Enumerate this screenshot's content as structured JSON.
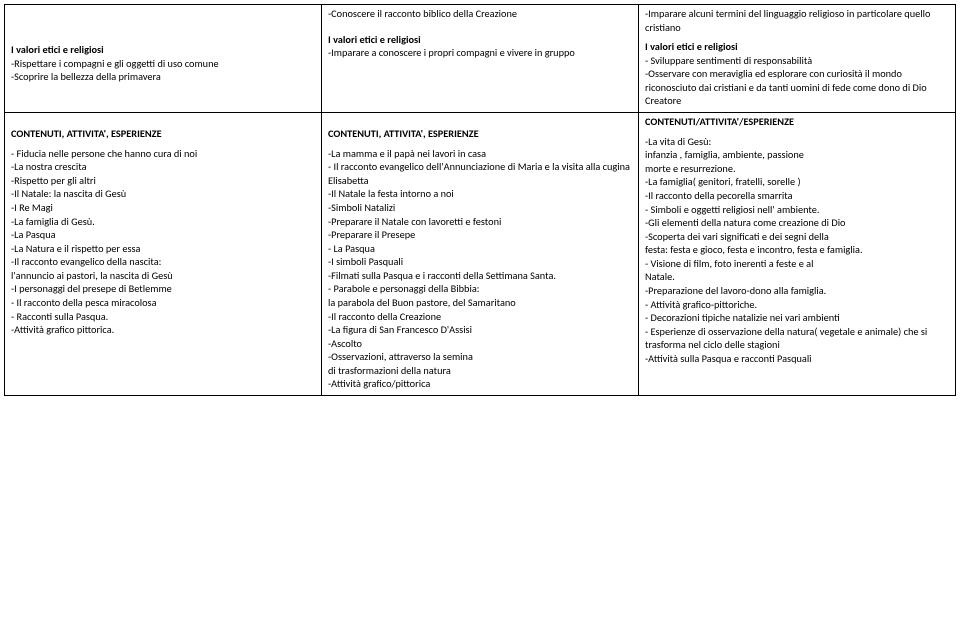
{
  "row1": {
    "col1": {
      "heading": "I valori etici e religiosi",
      "items": [
        "-Rispettare i compagni e gli oggetti  di uso comune",
        "-Scoprire  la bellezza della primavera"
      ]
    },
    "col2": {
      "top": "-Conoscere il racconto biblico della Creazione",
      "heading": "I valori etici e religiosi",
      "items": [
        "-Imparare a conoscere i propri compagni e vivere in gruppo"
      ]
    },
    "col3": {
      "top": "-Imparare alcuni termini del linguaggio religioso in particolare quello cristiano",
      "heading": "I valori etici e religiosi",
      "items": [
        "-  Sviluppare sentimenti di responsabilità",
        "-Osservare con meraviglia ed esplorare con curiosità il mondo riconosciuto dai cristiani e da tanti uomini di fede come dono di Dio Creatore"
      ]
    }
  },
  "row2": {
    "col1": {
      "heading": "CONTENUTI, ATTIVITA', ESPERIENZE",
      "items": [
        "- Fiducia nelle persone che hanno cura di noi",
        "-La nostra crescita",
        "-Rispetto per gli altri",
        "-Il Natale: la nascita di Gesù",
        "-I Re Magi",
        "-La famiglia di Gesù.",
        "-La Pasqua",
        " -La Natura e il rispetto per essa",
        "-Il racconto evangelico della nascita:",
        "   l'annuncio ai pastori, la nascita di Gesù",
        "-I personaggi del presepe di Betlemme",
        "- Il racconto della pesca miracolosa",
        "- Racconti sulla Pasqua.",
        "-Attività grafico pittorica."
      ]
    },
    "col2": {
      "heading": " CONTENUTI, ATTIVITA', ESPERIENZE",
      "items": [
        "-La mamma e il papà nei lavori in casa",
        "- Il racconto evangelico dell'Annunciazione di Maria e la visita alla cugina Elisabetta",
        "-Il Natale la festa intorno a noi",
        "-Simboli Natalizi",
        "-Preparare il Natale con lavoretti e festoni",
        "-Preparare il Presepe",
        "- La Pasqua",
        "-I simboli Pasquali",
        "-Filmati sulla Pasqua e i racconti della Settimana Santa.",
        "- Parabole e personaggi della Bibbia:",
        "la parabola  del Buon pastore, del Samaritano",
        "-Il racconto della Creazione",
        "-La figura di San Francesco D'Assisi",
        "-Ascolto",
        "-Osservazioni, attraverso la semina",
        "di trasformazioni della natura",
        " -Attività grafico/pittorica"
      ]
    },
    "col3": {
      "heading": "CONTENUTI/ATTIVITA'/ESPERIENZE",
      "items": [
        "-La vita di Gesù:",
        "   infanzia , famiglia, ambiente, passione",
        "     morte e resurrezione.",
        " -La famiglia( genitori, fratelli,  sorelle )",
        "-Il racconto della pecorella smarrita",
        "  - Simboli e oggetti religiosi nell' ambiente.",
        " -Gli elementi della natura come creazione di Dio",
        "-Scoperta dei vari significati e dei segni della",
        " festa: festa e gioco, festa e incontro, festa e famiglia.",
        "- Visione di film, foto inerenti a feste e al",
        "  Natale.",
        " -Preparazione del lavoro-dono alla famiglia.",
        "- Attività grafico-pittoriche.",
        "- Decorazioni tipiche natalizie nei vari ambienti",
        "- Esperienze  di osservazione della natura( vegetale e animale) che si trasforma nel ciclo delle stagioni",
        "-Attività sulla Pasqua e racconti Pasquali"
      ]
    }
  }
}
